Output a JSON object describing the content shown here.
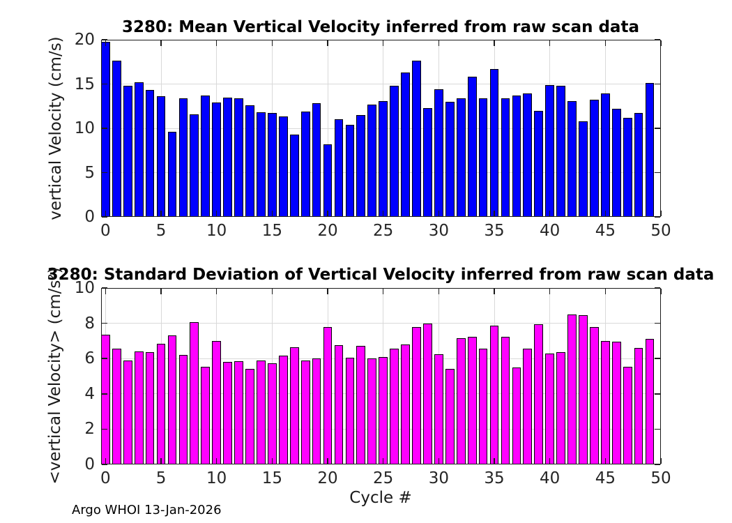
{
  "figure": {
    "background": "#ffffff"
  },
  "footer": {
    "text": "Argo WHOI 13-Jan-2026"
  },
  "xlabel": "Cycle #",
  "colors": {
    "axis": "#1a1a1a",
    "grid": "#d9d9d9",
    "tick_label": "#262626",
    "title": "#000000",
    "mean_bar": "#0000ff",
    "std_bar": "#ff00ff",
    "bar_edge": "#000000"
  },
  "chart_data": [
    {
      "type": "bar",
      "title": "3280: Mean Vertical Velocity inferred from raw scan data",
      "ylabel": "vertical Velocity (cm/s)",
      "xlabel": "",
      "legend": null,
      "grid": true,
      "bar_color": "#0000ff",
      "bar_edge_color": "#000000",
      "xlim": [
        -0.4,
        50
      ],
      "ylim": [
        0,
        20
      ],
      "xticks": [
        0,
        5,
        10,
        15,
        20,
        25,
        30,
        35,
        40,
        45,
        50
      ],
      "yticks": [
        0,
        5,
        10,
        15,
        20
      ],
      "x": [
        0,
        1,
        2,
        3,
        4,
        5,
        6,
        7,
        8,
        9,
        10,
        11,
        12,
        13,
        14,
        15,
        16,
        17,
        18,
        19,
        20,
        21,
        22,
        23,
        24,
        25,
        26,
        27,
        28,
        29,
        30,
        31,
        32,
        33,
        34,
        35,
        36,
        37,
        38,
        39,
        40,
        41,
        42,
        43,
        44,
        45,
        46,
        47,
        48,
        49
      ],
      "values": [
        19.8,
        17.6,
        14.8,
        15.2,
        14.3,
        13.6,
        9.6,
        13.4,
        11.6,
        13.7,
        12.9,
        13.5,
        13.4,
        12.6,
        11.8,
        11.7,
        11.3,
        9.3,
        11.9,
        12.8,
        8.2,
        11.0,
        10.4,
        11.5,
        12.7,
        13.1,
        14.8,
        16.3,
        17.6,
        12.3,
        14.4,
        13.0,
        13.4,
        15.8,
        13.4,
        16.7,
        13.4,
        13.7,
        13.9,
        12.0,
        14.9,
        14.8,
        13.1,
        10.8,
        13.2,
        13.9,
        12.2,
        11.2,
        11.7,
        15.1
      ]
    },
    {
      "type": "bar",
      "title": "3280: Standard Deviation of Vertical Velocity inferred from raw scan data",
      "ylabel": "<vertical Velocity> (cm/s²)",
      "xlabel": "Cycle #",
      "legend": null,
      "grid": true,
      "bar_color": "#ff00ff",
      "bar_edge_color": "#000000",
      "xlim": [
        -0.4,
        50
      ],
      "ylim": [
        0,
        10
      ],
      "xticks": [
        0,
        5,
        10,
        15,
        20,
        25,
        30,
        35,
        40,
        45,
        50
      ],
      "yticks": [
        0,
        2,
        4,
        6,
        8,
        10
      ],
      "x": [
        0,
        1,
        2,
        3,
        4,
        5,
        6,
        7,
        8,
        9,
        10,
        11,
        12,
        13,
        14,
        15,
        16,
        17,
        18,
        19,
        20,
        21,
        22,
        23,
        24,
        25,
        26,
        27,
        28,
        29,
        30,
        31,
        32,
        33,
        34,
        35,
        36,
        37,
        38,
        39,
        40,
        41,
        42,
        43,
        44,
        45,
        46,
        47,
        48,
        49
      ],
      "values": [
        7.35,
        6.55,
        5.9,
        6.4,
        6.35,
        6.85,
        7.3,
        6.2,
        8.05,
        5.55,
        7.0,
        5.8,
        5.85,
        5.4,
        5.9,
        5.75,
        6.15,
        6.65,
        5.9,
        6.0,
        7.8,
        6.75,
        6.05,
        6.7,
        6.0,
        6.1,
        6.55,
        6.8,
        7.8,
        8.0,
        6.25,
        5.4,
        7.15,
        7.25,
        6.55,
        7.85,
        7.25,
        5.5,
        6.55,
        7.95,
        6.3,
        6.35,
        8.5,
        8.45,
        7.8,
        7.0,
        6.95,
        5.55,
        6.6,
        7.1
      ]
    }
  ]
}
